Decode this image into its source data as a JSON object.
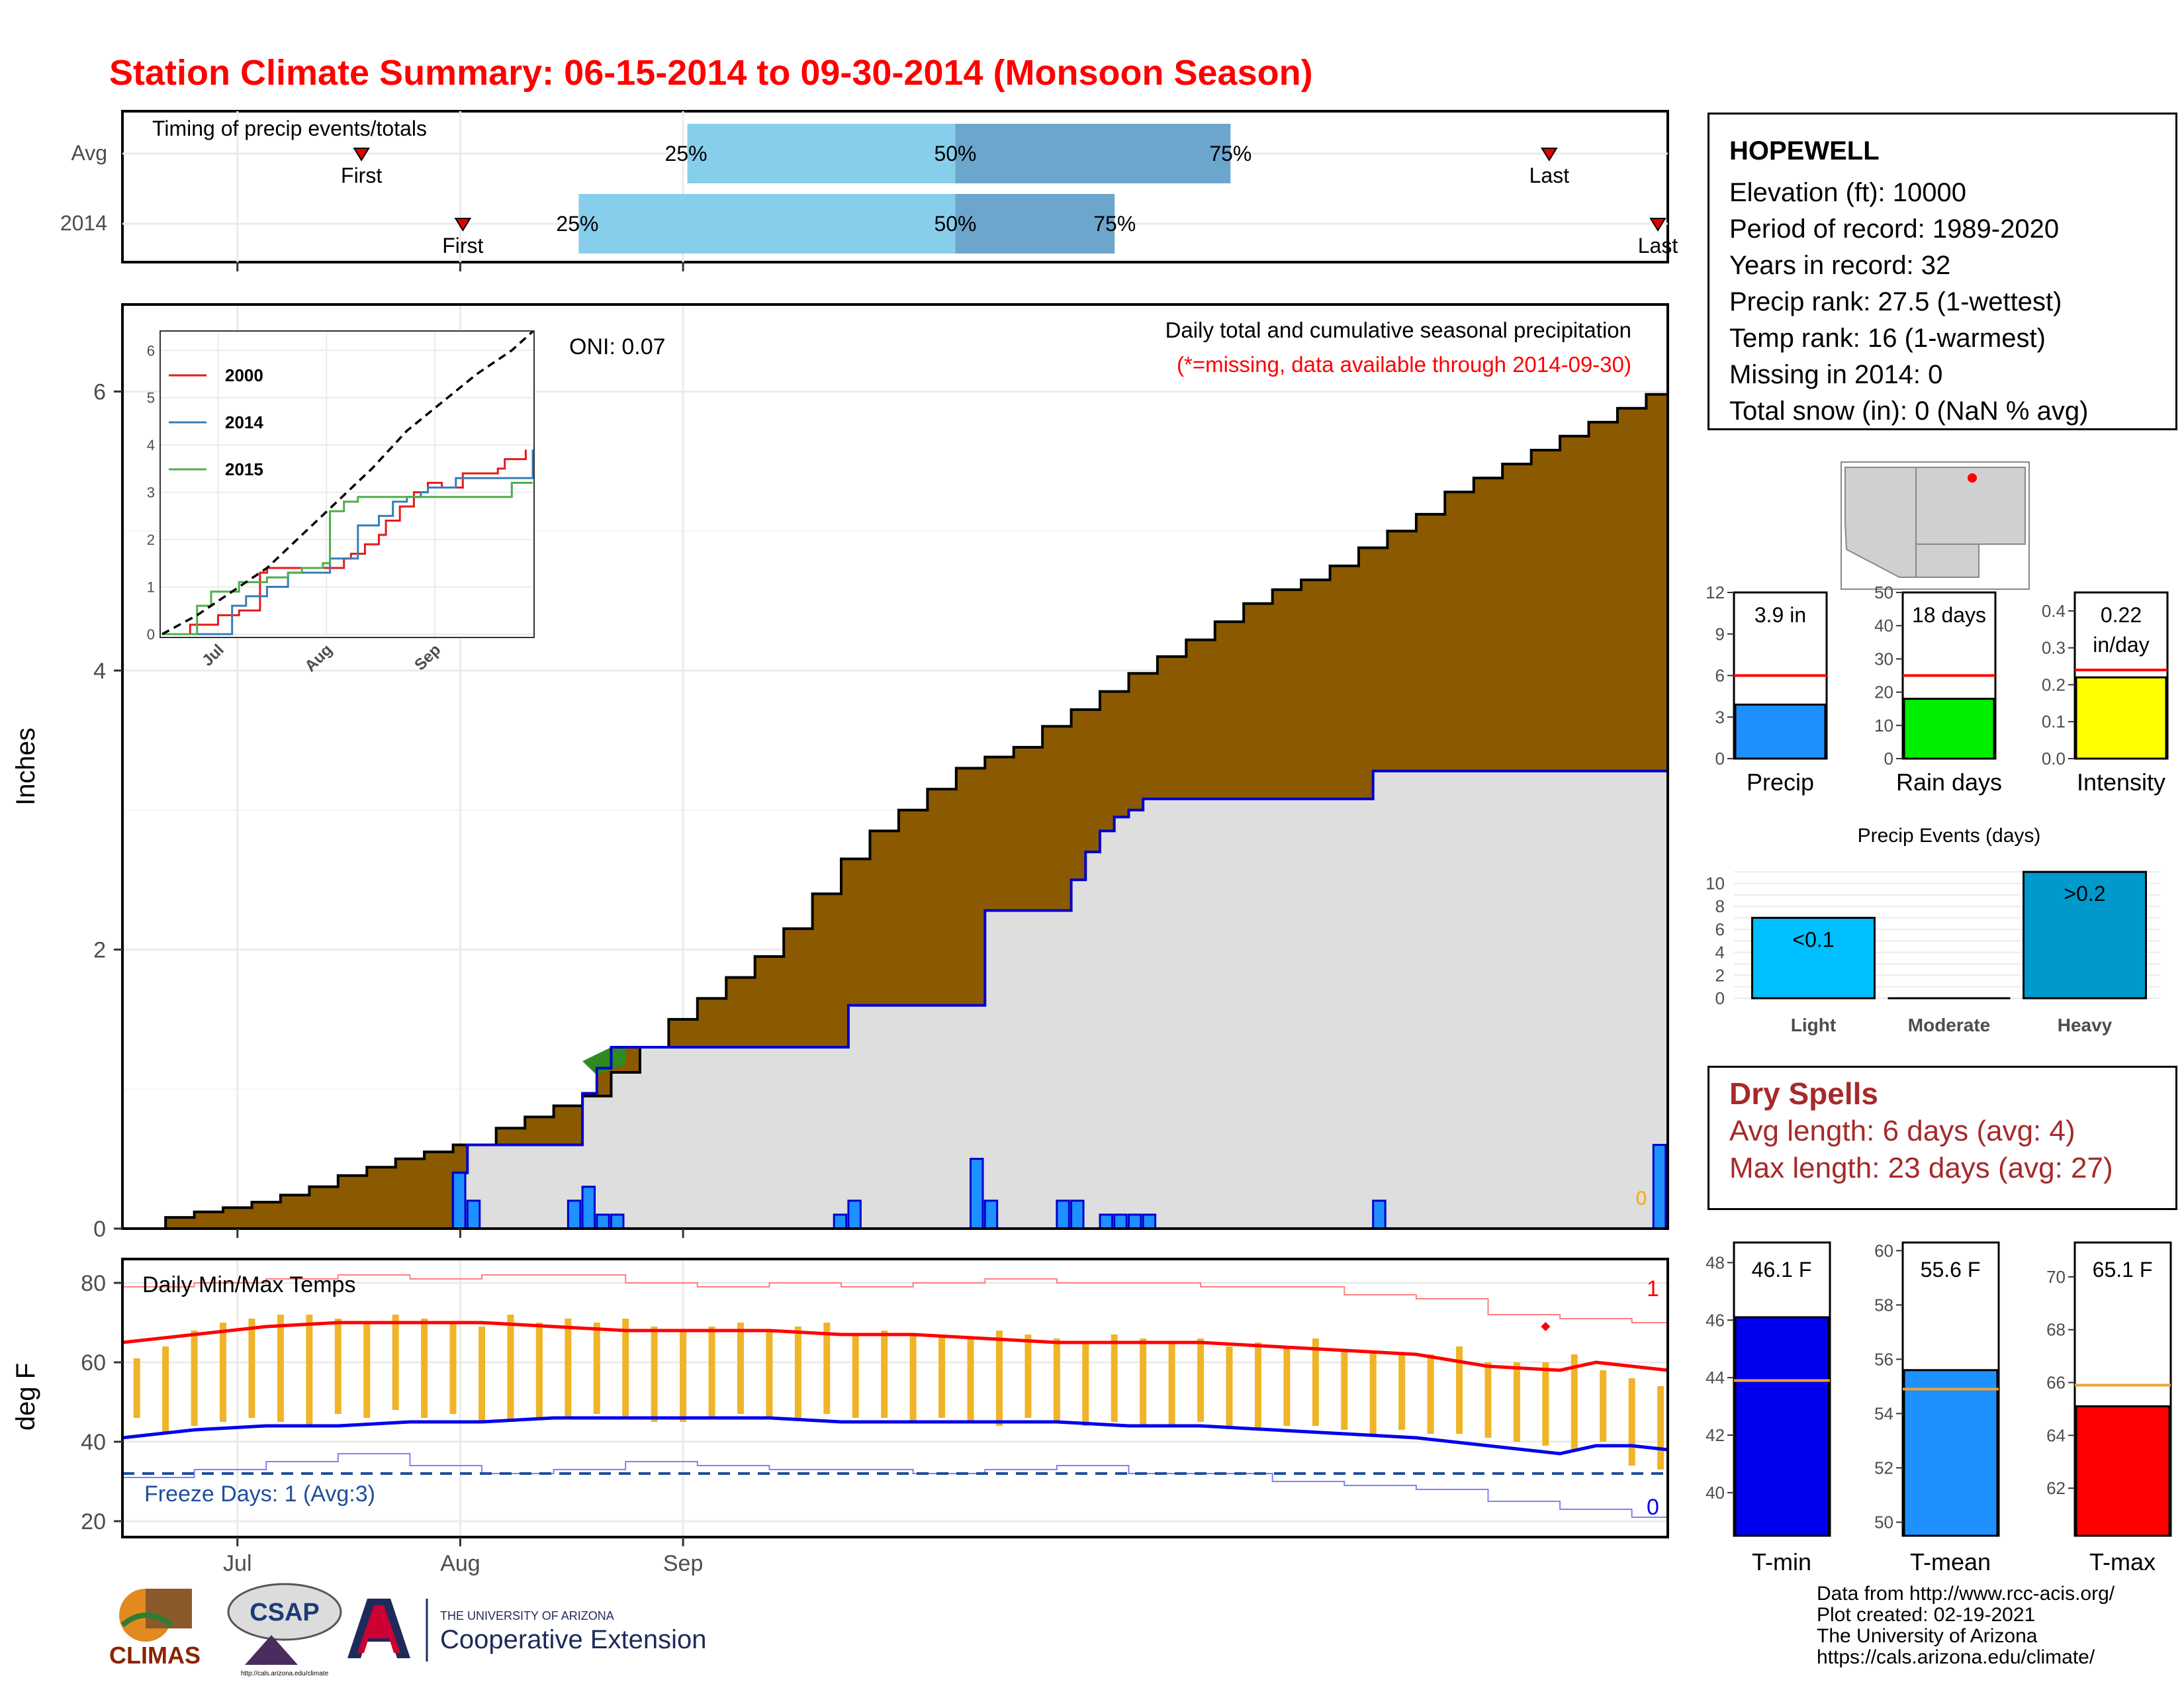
{
  "title": "Station Climate Summary: 06-15-2014 to 09-30-2014 (Monsoon Season)",
  "timing": {
    "label": "Timing of precip events/totals",
    "rows": [
      {
        "name": "Avg",
        "first_day": 33,
        "p25_day": 78,
        "p50_day": 115,
        "p75_day": 153,
        "last_day": 197
      },
      {
        "name": "2014",
        "first_day": 47,
        "p25_day": 63,
        "p50_day": 115,
        "p75_day": 137,
        "last_day": 212
      }
    ],
    "first_label": "First",
    "last_label": "Last",
    "p25_label": "25%",
    "p50_label": "50%",
    "p75_label": "75%"
  },
  "main_panel": {
    "ylabel": "Inches",
    "oni_text": "ONI: 0.07",
    "caption": "Daily total and cumulative seasonal precipitation",
    "missing_note": "(*=missing, data available through 2014-09-30)",
    "missing_count": "0",
    "yticks": [
      "0",
      "2",
      "4",
      "6"
    ],
    "xticks": [
      "Jul",
      "Aug",
      "Sep"
    ]
  },
  "temp_panel": {
    "ylabel": "deg F",
    "title": "Daily Min/Max Temps",
    "freeze_text": "Freeze Days: 1 (Avg:3)",
    "count_high": "1",
    "count_low": "0",
    "yticks": [
      "20",
      "40",
      "60",
      "80"
    ],
    "xticks": [
      "Jul",
      "Aug",
      "Sep"
    ]
  },
  "info": {
    "station": "HOPEWELL",
    "lines": [
      "Elevation (ft): 10000",
      "Period of record: 1989-2020",
      "Years in record: 32",
      "Precip rank: 27.5 (1-wettest)",
      "Temp rank: 16 (1-warmest)",
      "Missing in 2014: 0",
      "Total snow (in): 0 (NaN % avg)"
    ]
  },
  "dry_spells": {
    "title": "Dry Spells",
    "avg_line": "Avg length: 6 days (avg: 4)",
    "max_line": "Max length: 23 days (avg: 27)"
  },
  "mini_bars": [
    {
      "label": "Precip",
      "value": 3.9,
      "avg": 6,
      "ymax": 12,
      "ticks": [
        "0",
        "3",
        "6",
        "9",
        "12"
      ],
      "text1": "3.9 in",
      "text2": "",
      "color": "#1e90ff"
    },
    {
      "label": "Rain days",
      "value": 18,
      "avg": 25,
      "ymax": 50,
      "ticks": [
        "0",
        "10",
        "20",
        "30",
        "40",
        "50"
      ],
      "text1": "18 days",
      "text2": "",
      "color": "#00ee00"
    },
    {
      "label": "Intensity",
      "value": 0.22,
      "avg": 0.24,
      "ymax": 0.45,
      "ticks": [
        "0.0",
        "0.1",
        "0.2",
        "0.3",
        "0.4"
      ],
      "text1": "0.22",
      "text2": "in/day",
      "color": "#ffff00"
    }
  ],
  "precip_events": {
    "title": "Precip Events (days)",
    "categories": [
      "Light",
      "Moderate",
      "Heavy"
    ],
    "values": [
      7,
      0,
      11
    ],
    "bar_labels": [
      "<0.1",
      "",
      ">0.2"
    ],
    "colors": [
      "#00bfff",
      "#5bb8e8",
      "#0099cc"
    ],
    "ticks": [
      "0",
      "2",
      "4",
      "6",
      "8",
      "10"
    ]
  },
  "temp_bars": [
    {
      "label": "T-min",
      "value": 46.1,
      "avg": 43.9,
      "ymin": 38.5,
      "ymax": 48.7,
      "ticks": [
        "40",
        "42",
        "44",
        "46",
        "48"
      ],
      "text": "46.1 F",
      "color": "#0000ee"
    },
    {
      "label": "T-mean",
      "value": 55.6,
      "avg": 54.9,
      "ymin": 49.5,
      "ymax": 60.3,
      "ticks": [
        "50",
        "52",
        "54",
        "56",
        "58",
        "60"
      ],
      "text": "55.6 F",
      "color": "#1e90ff"
    },
    {
      "label": "T-max",
      "value": 65.1,
      "avg": 65.9,
      "ymin": 60.2,
      "ymax": 71.3,
      "ticks": [
        "62",
        "64",
        "66",
        "68",
        "70"
      ],
      "text": "65.1 F",
      "color": "#ff0000"
    }
  ],
  "credits": {
    "line1": "Data from http://www.rcc-acis.org/",
    "line2": "Plot created: 02-19-2021",
    "line3": "The University of Arizona",
    "line4": "https://cals.arizona.edu/climate/"
  },
  "logos": {
    "climas": "CLIMAS",
    "csap": "CSAP",
    "csap_url": "http://cals.arizona.edu/climate",
    "ua_line1": "THE UNIVERSITY OF ARIZONA",
    "ua_line2": "Cooperative Extension"
  },
  "chart_data": [
    {
      "type": "area",
      "title": "Daily total and cumulative seasonal precipitation",
      "xlabel": "",
      "ylabel": "Inches",
      "x_start": "2014-06-15",
      "x_end": "2014-09-30",
      "ylim": [
        0,
        6.6
      ],
      "avg_cumulative": {
        "name": "Average cumulative",
        "days": [
          0,
          6,
          10,
          14,
          18,
          22,
          26,
          30,
          34,
          38,
          42,
          46,
          52,
          56,
          60,
          64,
          68,
          72,
          76,
          80,
          84,
          88,
          92,
          96,
          100,
          104,
          108,
          112,
          116,
          120,
          124,
          128,
          132,
          136,
          140,
          144,
          148,
          152,
          156,
          160,
          164,
          168,
          172,
          176,
          180,
          184,
          188,
          192,
          196,
          200,
          204,
          208,
          212,
          215
        ],
        "values": [
          0.0,
          0.08,
          0.12,
          0.15,
          0.19,
          0.24,
          0.3,
          0.38,
          0.44,
          0.5,
          0.55,
          0.6,
          0.72,
          0.8,
          0.88,
          0.95,
          1.12,
          1.3,
          1.5,
          1.65,
          1.8,
          1.95,
          2.15,
          2.4,
          2.65,
          2.85,
          3.0,
          3.15,
          3.3,
          3.38,
          3.45,
          3.6,
          3.72,
          3.85,
          3.98,
          4.1,
          4.22,
          4.35,
          4.48,
          4.58,
          4.65,
          4.75,
          4.88,
          5.0,
          5.12,
          5.28,
          5.38,
          5.48,
          5.58,
          5.68,
          5.78,
          5.88,
          5.98,
          6.05
        ]
      },
      "current_cumulative": {
        "name": "2014 cumulative",
        "days": [
          0,
          46,
          48,
          62,
          64,
          66,
          68,
          99,
          101,
          118,
          120,
          130,
          132,
          134,
          136,
          138,
          140,
          142,
          144,
          174,
          215
        ],
        "values": [
          0.0,
          0.4,
          0.6,
          0.6,
          0.97,
          1.15,
          1.3,
          1.3,
          1.6,
          1.6,
          2.28,
          2.28,
          2.5,
          2.7,
          2.85,
          2.95,
          3.0,
          3.08,
          3.08,
          3.28,
          3.88
        ]
      },
      "daily_precip": {
        "name": "Daily precip",
        "days": [
          46,
          48,
          62,
          64,
          66,
          68,
          99,
          101,
          118,
          120,
          130,
          132,
          136,
          138,
          140,
          142,
          174,
          213
        ],
        "values": [
          0.4,
          0.2,
          0.2,
          0.3,
          0.1,
          0.1,
          0.1,
          0.2,
          0.5,
          0.2,
          0.2,
          0.2,
          0.1,
          0.1,
          0.1,
          0.1,
          0.2,
          0.6
        ]
      }
    },
    {
      "type": "line",
      "title": "",
      "xticks": [
        "Jul",
        "Aug",
        "Sep"
      ],
      "ylim": [
        0,
        6
      ],
      "series": [
        {
          "name": "2000",
          "color": "#e41a1c",
          "days": [
            0,
            8,
            16,
            22,
            28,
            30,
            36,
            44,
            52,
            54,
            58,
            62,
            64,
            68,
            72,
            76,
            80,
            86,
            92,
            96,
            98,
            100,
            104
          ],
          "values": [
            0.0,
            0.2,
            0.4,
            0.5,
            1.3,
            1.4,
            1.4,
            1.4,
            1.6,
            1.7,
            1.9,
            2.1,
            2.4,
            2.7,
            3.0,
            3.2,
            3.1,
            3.4,
            3.4,
            3.5,
            3.7,
            3.7,
            3.9
          ]
        },
        {
          "name": "2014",
          "color": "#377eb8",
          "days": [
            0,
            16,
            20,
            24,
            30,
            36,
            46,
            48,
            54,
            56,
            58,
            62,
            66,
            70,
            74,
            76,
            78,
            80,
            84,
            104,
            106
          ],
          "values": [
            0.0,
            0.0,
            0.6,
            0.8,
            1.0,
            1.3,
            1.3,
            1.6,
            1.6,
            2.3,
            2.3,
            2.5,
            2.8,
            2.9,
            3.0,
            3.1,
            3.1,
            3.1,
            3.3,
            3.3,
            3.9
          ]
        },
        {
          "name": "2015",
          "color": "#4daf4a",
          "days": [
            0,
            10,
            14,
            22,
            30,
            36,
            40,
            46,
            48,
            52,
            56,
            62,
            70,
            76,
            82,
            88,
            96,
            100,
            104,
            106
          ],
          "values": [
            0.0,
            0.6,
            0.9,
            1.1,
            1.2,
            1.3,
            1.4,
            1.5,
            2.6,
            2.8,
            2.9,
            2.9,
            2.9,
            2.9,
            2.9,
            2.9,
            2.9,
            3.2,
            3.2,
            3.2
          ]
        },
        {
          "name": "Average",
          "color": "#000000",
          "dashed": true,
          "days": [
            0,
            10,
            20,
            30,
            40,
            50,
            60,
            70,
            80,
            90,
            100,
            106
          ],
          "values": [
            0.0,
            0.4,
            0.9,
            1.4,
            2.1,
            2.8,
            3.5,
            4.3,
            4.9,
            5.5,
            6.0,
            6.4
          ]
        }
      ]
    },
    {
      "type": "line",
      "title": "Daily Min/Max Temps",
      "ylabel": "deg F",
      "ylim": [
        16,
        86
      ],
      "series": [
        {
          "name": "Avg max",
          "color": "#ff0000",
          "days": [
            0,
            10,
            20,
            30,
            40,
            50,
            60,
            70,
            80,
            90,
            100,
            110,
            120,
            130,
            140,
            150,
            160,
            170,
            180,
            190,
            200,
            205,
            210,
            215
          ],
          "values": [
            65,
            67,
            69,
            70,
            70,
            70,
            69,
            68,
            68,
            68,
            67,
            67,
            66,
            65,
            65,
            65,
            64,
            63,
            62,
            59,
            58,
            60,
            59,
            58
          ]
        },
        {
          "name": "Avg min",
          "color": "#0000ee",
          "days": [
            0,
            10,
            20,
            30,
            40,
            50,
            60,
            70,
            80,
            90,
            100,
            110,
            120,
            130,
            140,
            150,
            160,
            170,
            180,
            190,
            200,
            205,
            210,
            215
          ],
          "values": [
            41,
            43,
            44,
            44,
            45,
            45,
            46,
            46,
            46,
            46,
            45,
            45,
            45,
            45,
            44,
            44,
            43,
            42,
            41,
            39,
            37,
            39,
            39,
            38
          ]
        },
        {
          "name": "Record max",
          "color": "#ff8080",
          "days": [
            0,
            10,
            20,
            30,
            40,
            50,
            60,
            70,
            80,
            90,
            100,
            110,
            120,
            130,
            140,
            150,
            160,
            170,
            180,
            190,
            200,
            210,
            215
          ],
          "values": [
            79,
            80,
            81,
            82,
            81,
            82,
            82,
            80,
            79,
            80,
            79,
            80,
            81,
            80,
            80,
            79,
            79,
            77,
            76,
            72,
            71,
            70,
            70
          ]
        },
        {
          "name": "Record min",
          "color": "#8080ff",
          "days": [
            0,
            10,
            20,
            30,
            40,
            50,
            60,
            70,
            80,
            90,
            100,
            110,
            120,
            130,
            140,
            150,
            160,
            170,
            180,
            190,
            200,
            210,
            215
          ],
          "values": [
            31,
            33,
            35,
            37,
            34,
            32,
            33,
            35,
            34,
            33,
            33,
            32,
            33,
            34,
            32,
            32,
            30,
            29,
            28,
            25,
            23,
            21,
            20
          ]
        },
        {
          "name": "Freeze threshold",
          "color": "#1f4e9c",
          "dashed": true,
          "days": [
            0,
            215
          ],
          "values": [
            32,
            32
          ]
        }
      ],
      "daily_range": {
        "days": [
          2,
          6,
          10,
          14,
          18,
          22,
          26,
          30,
          34,
          38,
          42,
          46,
          50,
          54,
          58,
          62,
          66,
          70,
          74,
          78,
          82,
          86,
          90,
          94,
          98,
          102,
          106,
          110,
          114,
          118,
          122,
          126,
          130,
          134,
          138,
          142,
          146,
          150,
          154,
          158,
          162,
          166,
          170,
          174,
          178,
          182,
          186,
          190,
          194,
          198,
          202,
          206,
          210,
          214
        ],
        "lows": [
          46,
          42,
          44,
          45,
          46,
          45,
          44,
          47,
          46,
          48,
          46,
          47,
          45,
          45,
          46,
          46,
          47,
          46,
          45,
          45,
          46,
          47,
          46,
          46,
          47,
          46,
          46,
          45,
          46,
          45,
          44,
          46,
          45,
          44,
          45,
          44,
          44,
          45,
          44,
          43,
          44,
          44,
          43,
          42,
          43,
          42,
          42,
          41,
          40,
          39,
          38,
          40,
          34,
          33
        ],
        "highs": [
          61,
          64,
          68,
          70,
          71,
          72,
          72,
          71,
          70,
          72,
          71,
          70,
          69,
          72,
          70,
          71,
          70,
          71,
          69,
          68,
          69,
          70,
          68,
          69,
          70,
          67,
          68,
          67,
          67,
          66,
          68,
          67,
          66,
          65,
          67,
          66,
          65,
          66,
          64,
          65,
          64,
          66,
          63,
          63,
          62,
          62,
          64,
          60,
          60,
          60,
          62,
          58,
          56,
          54
        ]
      }
    },
    {
      "type": "bar",
      "title": "Precip Events (days)",
      "categories": [
        "Light",
        "Moderate",
        "Heavy"
      ],
      "values": [
        7,
        0,
        11
      ]
    },
    {
      "type": "bar",
      "categories": [
        "Precip",
        "Rain days",
        "Intensity"
      ],
      "values": [
        3.9,
        18,
        0.22
      ],
      "averages": [
        6,
        25,
        0.24
      ]
    },
    {
      "type": "bar",
      "categories": [
        "T-min",
        "T-mean",
        "T-max"
      ],
      "values": [
        46.1,
        55.6,
        65.1
      ],
      "averages": [
        43.9,
        54.9,
        65.9
      ]
    }
  ]
}
